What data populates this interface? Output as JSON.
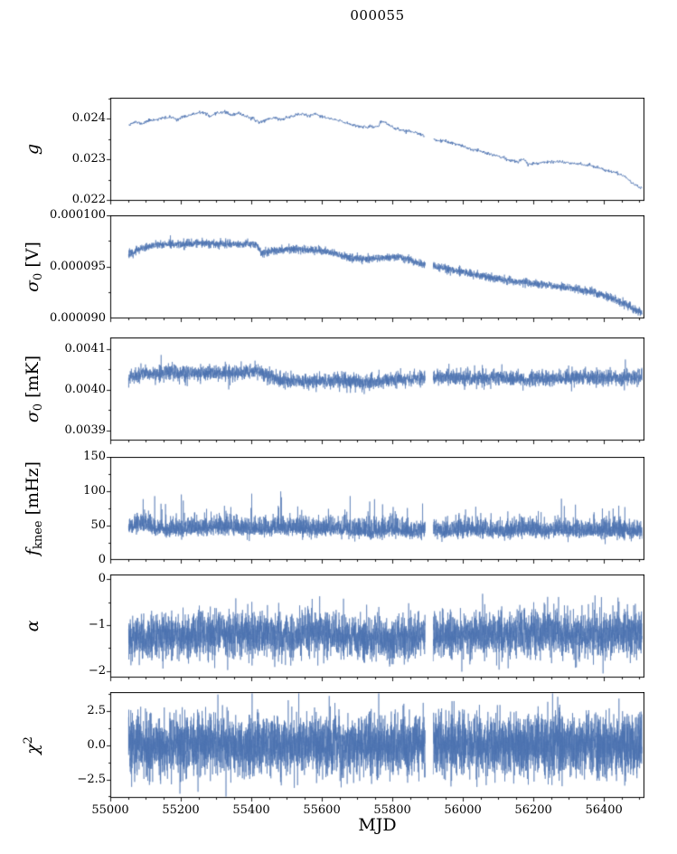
{
  "chart_data": {
    "type": "line",
    "title": "000055",
    "xlabel": "MJD",
    "line_color": "#4c72b0",
    "frame_color": "#000000",
    "x_axis": {
      "lim": [
        55000,
        56515
      ],
      "data_range": [
        55052,
        56508
      ],
      "ticks": [
        55000,
        55200,
        55400,
        55600,
        55800,
        56000,
        56200,
        56400
      ],
      "tick_labels": [
        "55000",
        "55200",
        "55400",
        "55600",
        "55800",
        "56000",
        "56200",
        "56400"
      ],
      "minor_step": 50,
      "gap": [
        55893,
        55916
      ]
    },
    "panels": [
      {
        "id": "g",
        "ylabel_plain": "g",
        "ylabel_parts": [
          {
            "text": "g",
            "kind": "italic"
          }
        ],
        "ylim": [
          0.02198,
          0.02452
        ],
        "yticks": [
          {
            "v": 0.022,
            "label": "0.022"
          },
          {
            "v": 0.023,
            "label": "0.023"
          },
          {
            "v": 0.024,
            "label": "0.024"
          }
        ],
        "trend": [
          [
            55055,
            0.02387
          ],
          [
            55070,
            0.02392
          ],
          [
            55090,
            0.02388
          ],
          [
            55110,
            0.02396
          ],
          [
            55140,
            0.024
          ],
          [
            55170,
            0.02404
          ],
          [
            55190,
            0.02399
          ],
          [
            55215,
            0.02407
          ],
          [
            55240,
            0.02412
          ],
          [
            55265,
            0.02416
          ],
          [
            55285,
            0.02404
          ],
          [
            55305,
            0.02415
          ],
          [
            55325,
            0.02417
          ],
          [
            55345,
            0.02409
          ],
          [
            55365,
            0.02413
          ],
          [
            55385,
            0.02407
          ],
          [
            55405,
            0.02399
          ],
          [
            55425,
            0.02391
          ],
          [
            55445,
            0.02399
          ],
          [
            55465,
            0.02403
          ],
          [
            55485,
            0.02398
          ],
          [
            55505,
            0.02404
          ],
          [
            55525,
            0.02409
          ],
          [
            55545,
            0.02412
          ],
          [
            55565,
            0.02407
          ],
          [
            55585,
            0.02411
          ],
          [
            55605,
            0.02404
          ],
          [
            55630,
            0.02399
          ],
          [
            55655,
            0.02394
          ],
          [
            55680,
            0.02387
          ],
          [
            55705,
            0.02382
          ],
          [
            55730,
            0.02379
          ],
          [
            55755,
            0.02381
          ],
          [
            55775,
            0.02393
          ],
          [
            55790,
            0.02386
          ],
          [
            55805,
            0.02377
          ],
          [
            55830,
            0.02371
          ],
          [
            55855,
            0.02369
          ],
          [
            55880,
            0.02361
          ],
          [
            55905,
            0.02352
          ],
          [
            55930,
            0.02347
          ],
          [
            55955,
            0.02343
          ],
          [
            55980,
            0.02338
          ],
          [
            56005,
            0.0233
          ],
          [
            56030,
            0.02324
          ],
          [
            56055,
            0.0232
          ],
          [
            56080,
            0.02313
          ],
          [
            56105,
            0.02307
          ],
          [
            56130,
            0.02299
          ],
          [
            56155,
            0.02293
          ],
          [
            56172,
            0.02303
          ],
          [
            56185,
            0.02288
          ],
          [
            56210,
            0.02291
          ],
          [
            56235,
            0.02294
          ],
          [
            56260,
            0.02295
          ],
          [
            56285,
            0.02293
          ],
          [
            56310,
            0.02291
          ],
          [
            56335,
            0.02289
          ],
          [
            56360,
            0.02285
          ],
          [
            56385,
            0.0228
          ],
          [
            56410,
            0.02272
          ],
          [
            56435,
            0.02267
          ],
          [
            56460,
            0.02258
          ],
          [
            56480,
            0.02242
          ],
          [
            56505,
            0.0223
          ]
        ],
        "noise": {
          "sigma": 2e-05,
          "spike_prob": 0,
          "spike_scale": 0,
          "spike_sign": 0,
          "neg_scale": 1
        },
        "npoints": 1100,
        "line_width": 0.9,
        "seed": 11
      },
      {
        "id": "sigma0-v",
        "ylabel_plain": "sigma0 [V]",
        "ylabel_parts": [
          {
            "text": "σ",
            "kind": "italic"
          },
          {
            "text": "0",
            "kind": "sub"
          },
          {
            "text": " [V]",
            "kind": "norm"
          }
        ],
        "ylim": [
          9e-05,
          0.0001
        ],
        "yticks": [
          {
            "v": 9e-05,
            "label": "0.000090"
          },
          {
            "v": 9.5e-05,
            "label": "0.000095"
          },
          {
            "v": 0.0001,
            "label": "0.000100"
          }
        ],
        "trend": [
          [
            55055,
            9.62e-05
          ],
          [
            55085,
            9.68e-05
          ],
          [
            55125,
            9.71e-05
          ],
          [
            55170,
            9.72e-05
          ],
          [
            55220,
            9.72e-05
          ],
          [
            55270,
            9.73e-05
          ],
          [
            55320,
            9.72e-05
          ],
          [
            55370,
            9.72e-05
          ],
          [
            55415,
            9.72e-05
          ],
          [
            55428,
            9.63e-05
          ],
          [
            55465,
            9.66e-05
          ],
          [
            55505,
            9.67e-05
          ],
          [
            55545,
            9.67e-05
          ],
          [
            55585,
            9.66e-05
          ],
          [
            55625,
            9.64e-05
          ],
          [
            55655,
            9.61e-05
          ],
          [
            55690,
            9.58e-05
          ],
          [
            55730,
            9.58e-05
          ],
          [
            55770,
            9.59e-05
          ],
          [
            55810,
            9.6e-05
          ],
          [
            55845,
            9.58e-05
          ],
          [
            55875,
            9.53e-05
          ],
          [
            55905,
            9.51e-05
          ],
          [
            55945,
            9.49e-05
          ],
          [
            55985,
            9.46e-05
          ],
          [
            56025,
            9.43e-05
          ],
          [
            56065,
            9.41e-05
          ],
          [
            56105,
            9.38e-05
          ],
          [
            56145,
            9.36e-05
          ],
          [
            56185,
            9.34e-05
          ],
          [
            56225,
            9.33e-05
          ],
          [
            56265,
            9.31e-05
          ],
          [
            56305,
            9.3e-05
          ],
          [
            56345,
            9.27e-05
          ],
          [
            56385,
            9.24e-05
          ],
          [
            56425,
            9.19e-05
          ],
          [
            56465,
            9.13e-05
          ],
          [
            56505,
            9.06e-05
          ]
        ],
        "noise": {
          "sigma": 1.9e-07,
          "spike_prob": 0.004,
          "spike_scale": 1.8,
          "spike_sign": 0,
          "neg_scale": 1
        },
        "npoints": 4200,
        "line_width": 0.6,
        "seed": 22
      },
      {
        "id": "sigma0-mk",
        "ylabel_plain": "sigma0 [mK]",
        "ylabel_parts": [
          {
            "text": "σ",
            "kind": "italic"
          },
          {
            "text": "0",
            "kind": "sub"
          },
          {
            "text": " [mK]",
            "kind": "norm"
          }
        ],
        "ylim": [
          0.003875,
          0.004128
        ],
        "yticks": [
          {
            "v": 0.0039,
            "label": "0.0039"
          },
          {
            "v": 0.004,
            "label": "0.0040"
          },
          {
            "v": 0.0041,
            "label": "0.0041"
          }
        ],
        "trend": [
          [
            55055,
            0.00403
          ],
          [
            55095,
            0.004041
          ],
          [
            55135,
            0.004037
          ],
          [
            55175,
            0.004043
          ],
          [
            55215,
            0.004039
          ],
          [
            55255,
            0.004037
          ],
          [
            55295,
            0.004041
          ],
          [
            55335,
            0.004041
          ],
          [
            55375,
            0.004044
          ],
          [
            55415,
            0.004046
          ],
          [
            55440,
            0.004038
          ],
          [
            55475,
            0.004026
          ],
          [
            55515,
            0.004021
          ],
          [
            55555,
            0.004019
          ],
          [
            55595,
            0.004022
          ],
          [
            55635,
            0.004023
          ],
          [
            55675,
            0.004019
          ],
          [
            55715,
            0.004018
          ],
          [
            55755,
            0.004021
          ],
          [
            55795,
            0.004023
          ],
          [
            55835,
            0.004026
          ],
          [
            55875,
            0.004028
          ],
          [
            55915,
            0.004029
          ],
          [
            55955,
            0.004031
          ],
          [
            55995,
            0.004028
          ],
          [
            56035,
            0.004027
          ],
          [
            56075,
            0.00403
          ],
          [
            56115,
            0.004029
          ],
          [
            56155,
            0.004027
          ],
          [
            56180,
            0.004021
          ],
          [
            56205,
            0.004029
          ],
          [
            56245,
            0.004031
          ],
          [
            56285,
            0.004028
          ],
          [
            56325,
            0.00403
          ],
          [
            56365,
            0.004029
          ],
          [
            56405,
            0.004031
          ],
          [
            56445,
            0.004028
          ],
          [
            56485,
            0.004031
          ],
          [
            56505,
            0.004033
          ]
        ],
        "noise": {
          "sigma": 9.2e-06,
          "spike_prob": 0.012,
          "spike_scale": 2.4,
          "spike_sign": 0,
          "neg_scale": 1
        },
        "npoints": 4200,
        "line_width": 0.6,
        "seed": 33
      },
      {
        "id": "fknee",
        "ylabel_plain": "f_knee [mHz]",
        "ylabel_parts": [
          {
            "text": "f",
            "kind": "italic"
          },
          {
            "text": "knee",
            "kind": "sub"
          },
          {
            "text": " [mHz]",
            "kind": "norm"
          }
        ],
        "ylim": [
          0,
          150
        ],
        "yticks": [
          {
            "v": 0,
            "label": "0"
          },
          {
            "v": 50,
            "label": "50"
          },
          {
            "v": 100,
            "label": "100"
          },
          {
            "v": 150,
            "label": "150"
          }
        ],
        "trend": [
          [
            55055,
            47
          ],
          [
            55095,
            51
          ],
          [
            55135,
            46
          ],
          [
            55175,
            43
          ],
          [
            55215,
            44
          ],
          [
            55255,
            46
          ],
          [
            55295,
            48
          ],
          [
            55335,
            47
          ],
          [
            55375,
            45
          ],
          [
            55415,
            44
          ],
          [
            55455,
            45
          ],
          [
            55495,
            47
          ],
          [
            55535,
            45
          ],
          [
            55575,
            44
          ],
          [
            55615,
            45
          ],
          [
            55655,
            44
          ],
          [
            55695,
            43
          ],
          [
            55735,
            42
          ],
          [
            55775,
            44
          ],
          [
            55815,
            43
          ],
          [
            55855,
            42
          ],
          [
            55895,
            43
          ],
          [
            55935,
            42
          ],
          [
            55975,
            43
          ],
          [
            56015,
            44
          ],
          [
            56055,
            43
          ],
          [
            56095,
            42
          ],
          [
            56135,
            43
          ],
          [
            56175,
            44
          ],
          [
            56215,
            43
          ],
          [
            56255,
            42
          ],
          [
            56295,
            43
          ],
          [
            56335,
            42
          ],
          [
            56375,
            43
          ],
          [
            56415,
            42
          ],
          [
            56455,
            42
          ],
          [
            56505,
            41
          ]
        ],
        "noise": {
          "sigma": 9,
          "spike_prob": 0.02,
          "spike_scale": 2.6,
          "spike_sign": 1,
          "neg_scale": 0.55,
          "clamp": [
            23,
            148
          ]
        },
        "npoints": 4800,
        "line_width": 0.6,
        "seed": 44
      },
      {
        "id": "alpha",
        "ylabel_plain": "alpha",
        "ylabel_parts": [
          {
            "text": "α",
            "kind": "italic"
          }
        ],
        "ylim": [
          -2.14,
          0.1
        ],
        "yticks": [
          {
            "v": -2,
            "label": "−2"
          },
          {
            "v": -1,
            "label": "−1"
          },
          {
            "v": 0,
            "label": "0"
          }
        ],
        "trend": [
          [
            55055,
            -1.3
          ],
          [
            55135,
            -1.28
          ],
          [
            55215,
            -1.24
          ],
          [
            55295,
            -1.2
          ],
          [
            55375,
            -1.2
          ],
          [
            55455,
            -1.22
          ],
          [
            55535,
            -1.26
          ],
          [
            55585,
            -1.14
          ],
          [
            55655,
            -1.24
          ],
          [
            55735,
            -1.28
          ],
          [
            55815,
            -1.3
          ],
          [
            55895,
            -1.26
          ],
          [
            55975,
            -1.22
          ],
          [
            56055,
            -1.2
          ],
          [
            56135,
            -1.18
          ],
          [
            56215,
            -1.14
          ],
          [
            56295,
            -1.18
          ],
          [
            56375,
            -1.2
          ],
          [
            56455,
            -1.16
          ],
          [
            56505,
            -1.14
          ]
        ],
        "noise": {
          "sigma": 0.24,
          "spike_prob": 0.006,
          "spike_scale": 1.6,
          "spike_sign": 0,
          "neg_scale": 1,
          "clamp": [
            -2.05,
            -0.32
          ]
        },
        "npoints": 4800,
        "line_width": 0.6,
        "seed": 55
      },
      {
        "id": "chi2",
        "ylabel_plain": "chi^2",
        "ylabel_parts": [
          {
            "text": "χ",
            "kind": "italic"
          },
          {
            "text": "2",
            "kind": "sup"
          }
        ],
        "ylim": [
          -3.85,
          3.9
        ],
        "yticks": [
          {
            "v": -2.5,
            "label": "−2.5"
          },
          {
            "v": 0,
            "label": "0.0"
          },
          {
            "v": 2.5,
            "label": "2.5"
          }
        ],
        "trend": [
          [
            55055,
            0
          ],
          [
            56505,
            0
          ]
        ],
        "noise": {
          "sigma": 1.05,
          "spike_prob": 0.006,
          "spike_scale": 1.7,
          "spike_sign": 0,
          "neg_scale": 1,
          "clamp": [
            -3.75,
            3.8
          ]
        },
        "npoints": 5600,
        "line_width": 0.6,
        "seed": 66
      }
    ]
  }
}
